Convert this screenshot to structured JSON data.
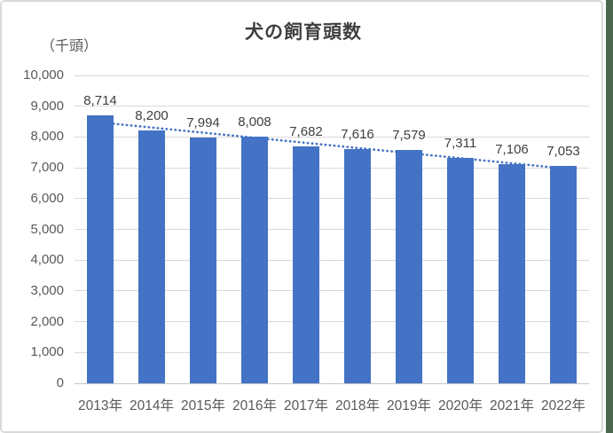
{
  "window": {
    "chart_border_color": "#D9D9D9",
    "background_color": "#FFFFFF",
    "right_strip_color": "#4C684F"
  },
  "chart_data": {
    "type": "bar",
    "title": "犬の飼育頭数",
    "unit_label": "（千頭）",
    "categories": [
      "2013年",
      "2014年",
      "2015年",
      "2016年",
      "2017年",
      "2018年",
      "2019年",
      "2020年",
      "2021年",
      "2022年"
    ],
    "values": [
      8714,
      8200,
      7994,
      8008,
      7682,
      7616,
      7579,
      7311,
      7106,
      7053
    ],
    "data_labels": [
      "8,714",
      "8,200",
      "7,994",
      "8,008",
      "7,682",
      "7,616",
      "7,579",
      "7,311",
      "7,106",
      "7,053"
    ],
    "ylim": [
      0,
      10000
    ],
    "ytick_interval": 1000,
    "ytick_labels": [
      "0",
      "1,000",
      "2,000",
      "3,000",
      "4,000",
      "5,000",
      "6,000",
      "7,000",
      "8,000",
      "9,000",
      "10,000"
    ],
    "grid": true,
    "legend": "none",
    "bar_color": "#4472C4",
    "label_color": "#404040",
    "axis_text_color": "#595959",
    "gridline_color": "#D9D9D9",
    "trendline": {
      "type": "linear",
      "style": "dotted",
      "color": "#4472C4",
      "start_value": 8473,
      "end_value": 6980
    }
  }
}
